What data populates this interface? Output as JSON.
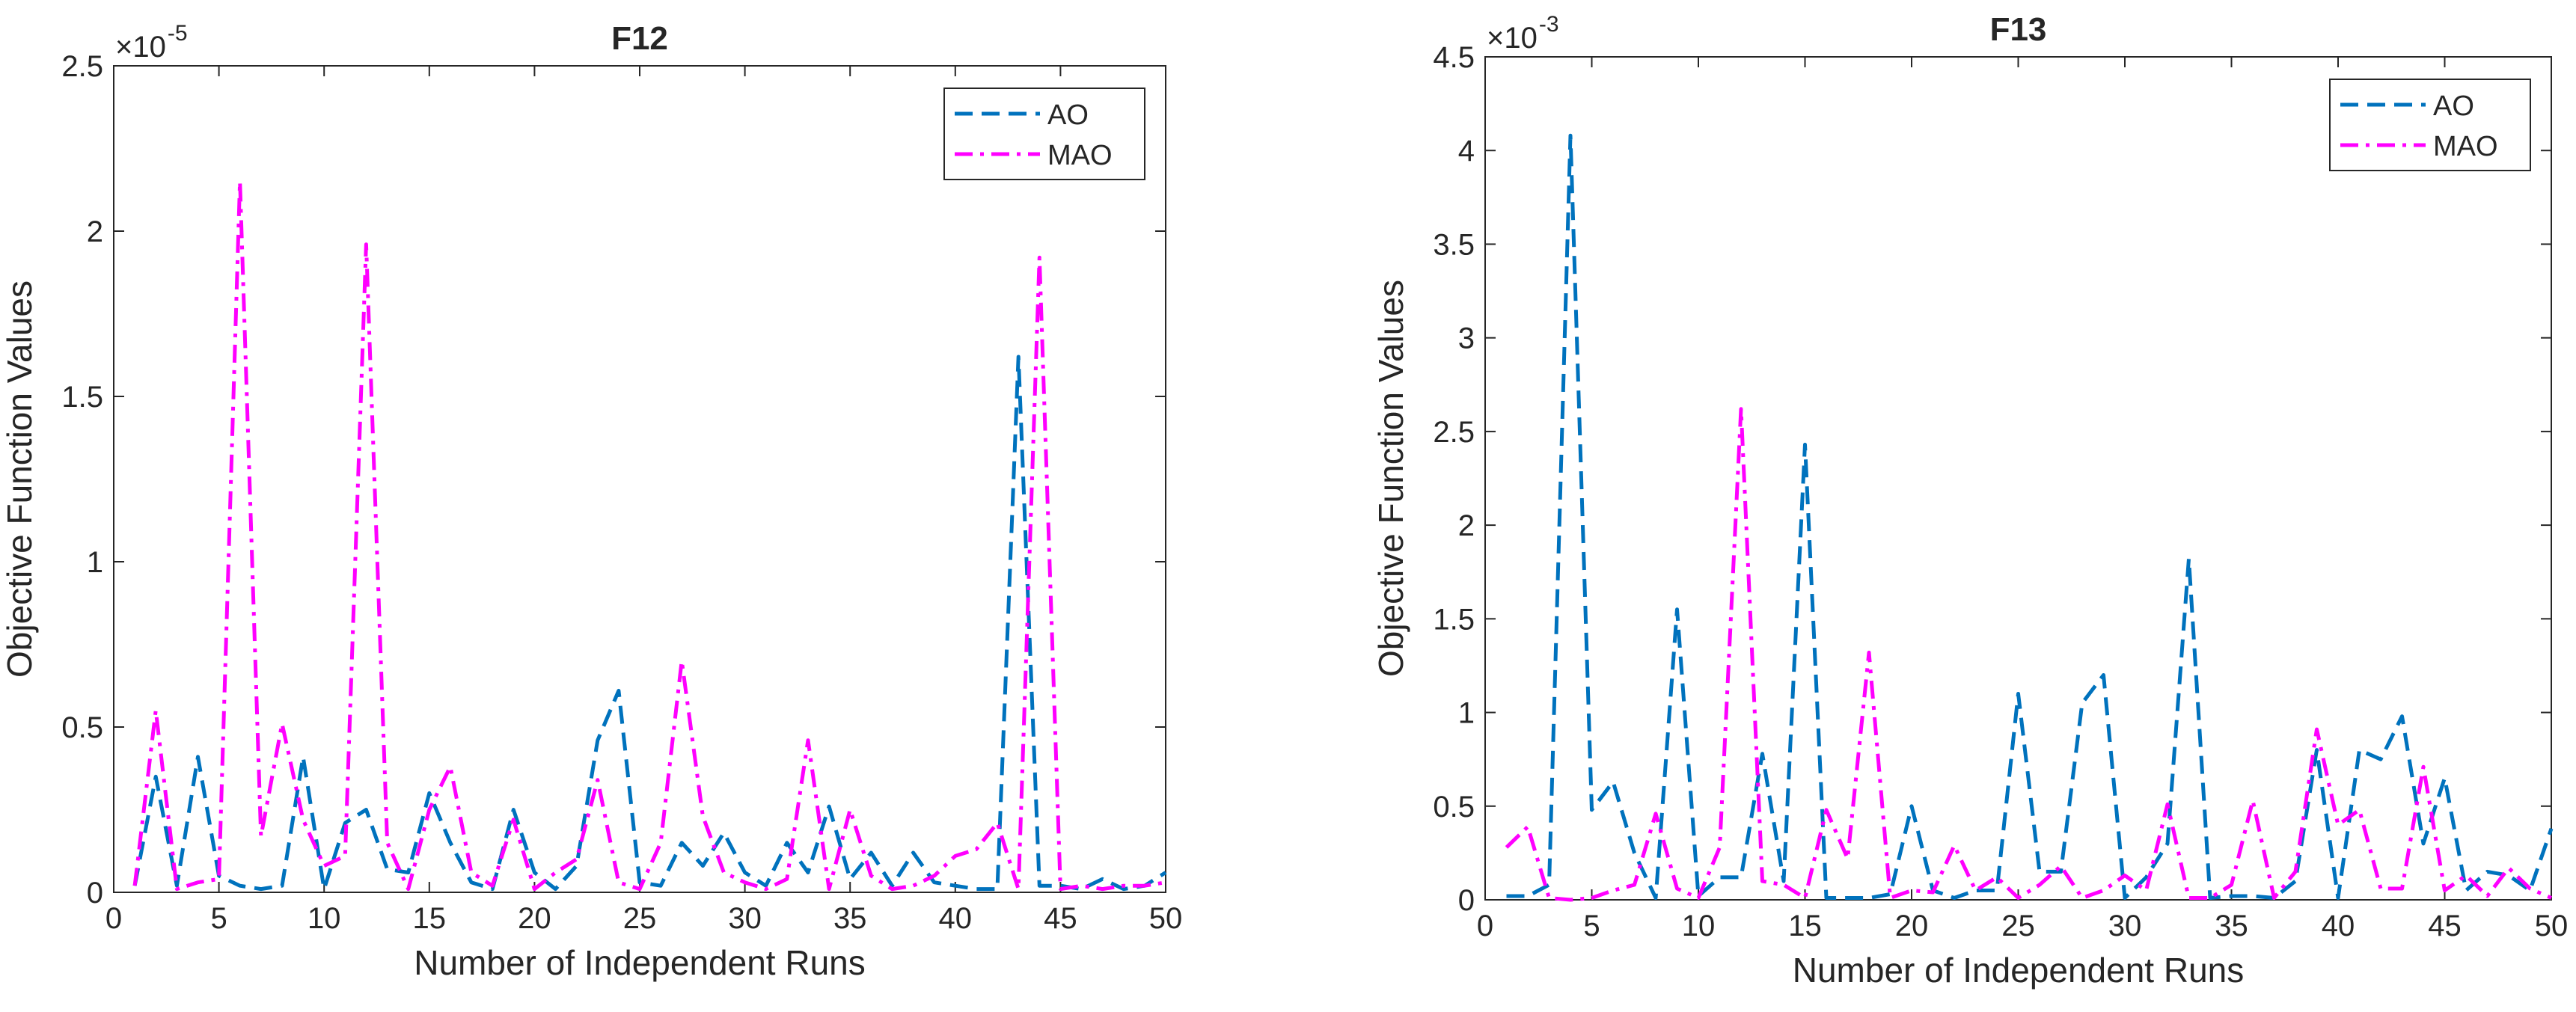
{
  "chart_data": [
    {
      "type": "line",
      "title": "F12",
      "xlabel": "Number of Independent Runs",
      "ylabel": "Objective Function Values",
      "exponent_label": "×10",
      "exponent": "-5",
      "xlim": [
        0,
        50
      ],
      "ylim": [
        0,
        2.5
      ],
      "xticks": [
        0,
        5,
        10,
        15,
        20,
        25,
        30,
        35,
        40,
        45,
        50
      ],
      "yticks": [
        0,
        0.5,
        1,
        1.5,
        2,
        2.5
      ],
      "ytick_labels": [
        "0",
        "0.5",
        "1",
        "1.5",
        "2",
        "2.5"
      ],
      "legend_position": "top-right",
      "x": [
        1,
        2,
        3,
        4,
        5,
        6,
        7,
        8,
        9,
        10,
        11,
        12,
        13,
        14,
        15,
        16,
        17,
        18,
        19,
        20,
        21,
        22,
        23,
        24,
        25,
        26,
        27,
        28,
        29,
        30,
        31,
        32,
        33,
        34,
        35,
        36,
        37,
        38,
        39,
        40,
        41,
        42,
        43,
        44,
        45,
        46,
        47,
        48,
        49,
        50
      ],
      "series": [
        {
          "name": "AO",
          "color": "#0072BD",
          "dash": "dashed",
          "values": [
            0.02,
            0.35,
            0.02,
            0.41,
            0.05,
            0.02,
            0.01,
            0.02,
            0.41,
            0.01,
            0.21,
            0.25,
            0.07,
            0.06,
            0.3,
            0.15,
            0.03,
            0.01,
            0.25,
            0.06,
            0.01,
            0.08,
            0.46,
            0.61,
            0.03,
            0.02,
            0.15,
            0.08,
            0.18,
            0.06,
            0.02,
            0.15,
            0.06,
            0.26,
            0.04,
            0.12,
            0.02,
            0.12,
            0.03,
            0.02,
            0.01,
            0.01,
            1.62,
            0.02,
            0.02,
            0.01,
            0.04,
            0.01,
            0.02,
            0.06
          ]
        },
        {
          "name": "MAO",
          "color": "#FF00FF",
          "dash": "dashdot",
          "values": [
            0.02,
            0.55,
            0.01,
            0.03,
            0.04,
            2.15,
            0.17,
            0.51,
            0.22,
            0.08,
            0.11,
            1.96,
            0.15,
            0.01,
            0.25,
            0.38,
            0.06,
            0.02,
            0.22,
            0.01,
            0.06,
            0.1,
            0.34,
            0.03,
            0.01,
            0.15,
            0.7,
            0.23,
            0.06,
            0.03,
            0.01,
            0.04,
            0.46,
            0.01,
            0.25,
            0.05,
            0.01,
            0.02,
            0.05,
            0.11,
            0.13,
            0.21,
            0.01,
            1.92,
            0.01,
            0.02,
            0.01,
            0.02,
            0.02,
            0.03
          ]
        }
      ]
    },
    {
      "type": "line",
      "title": "F13",
      "xlabel": "Number of Independent Runs",
      "ylabel": "Objective Function Values",
      "exponent_label": "×10",
      "exponent": "-3",
      "xlim": [
        0,
        50
      ],
      "ylim": [
        0,
        4.5
      ],
      "xticks": [
        0,
        5,
        10,
        15,
        20,
        25,
        30,
        35,
        40,
        45,
        50
      ],
      "yticks": [
        0,
        0.5,
        1,
        1.5,
        2,
        2.5,
        3,
        3.5,
        4,
        4.5
      ],
      "ytick_labels": [
        "0",
        "0.5",
        "1",
        "1.5",
        "2",
        "2.5",
        "3",
        "3.5",
        "4",
        "4.5"
      ],
      "legend_position": "top-right",
      "x": [
        1,
        2,
        3,
        4,
        5,
        6,
        7,
        8,
        9,
        10,
        11,
        12,
        13,
        14,
        15,
        16,
        17,
        18,
        19,
        20,
        21,
        22,
        23,
        24,
        25,
        26,
        27,
        28,
        29,
        30,
        31,
        32,
        33,
        34,
        35,
        36,
        37,
        38,
        39,
        40,
        41,
        42,
        43,
        44,
        45,
        46,
        47,
        48,
        49,
        50
      ],
      "series": [
        {
          "name": "AO",
          "color": "#0072BD",
          "dash": "dashed",
          "values": [
            0.02,
            0.02,
            0.08,
            4.08,
            0.48,
            0.63,
            0.25,
            0.01,
            1.55,
            0.02,
            0.12,
            0.12,
            0.78,
            0.1,
            2.43,
            0.01,
            0.01,
            0.01,
            0.03,
            0.5,
            0.05,
            0.01,
            0.05,
            0.05,
            1.1,
            0.15,
            0.15,
            1.05,
            1.2,
            0.01,
            0.12,
            0.3,
            1.82,
            0.01,
            0.02,
            0.02,
            0.01,
            0.1,
            0.8,
            0.01,
            0.8,
            0.75,
            0.98,
            0.3,
            0.65,
            0.05,
            0.15,
            0.13,
            0.05,
            0.38
          ]
        },
        {
          "name": "MAO",
          "color": "#FF00FF",
          "dash": "dashdot",
          "values": [
            0.28,
            0.39,
            0.01,
            0.0,
            0.01,
            0.05,
            0.08,
            0.46,
            0.06,
            0.01,
            0.28,
            2.62,
            0.1,
            0.08,
            0.01,
            0.48,
            0.22,
            1.32,
            0.01,
            0.05,
            0.04,
            0.29,
            0.05,
            0.12,
            0.01,
            0.08,
            0.18,
            0.01,
            0.05,
            0.13,
            0.05,
            0.51,
            0.01,
            0.01,
            0.08,
            0.53,
            0.01,
            0.15,
            0.91,
            0.4,
            0.48,
            0.06,
            0.06,
            0.71,
            0.05,
            0.13,
            0.02,
            0.17,
            0.06,
            0.01
          ]
        }
      ]
    }
  ]
}
